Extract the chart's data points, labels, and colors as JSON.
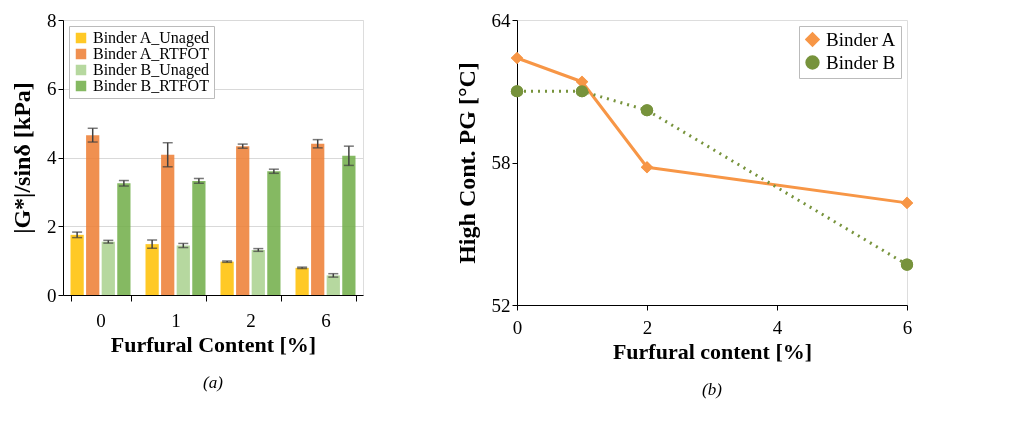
{
  "chart_data": [
    {
      "type": "bar",
      "categories": [
        "0",
        "1",
        "2",
        "6"
      ],
      "xlabel": "Furfural Content [%]",
      "ylabel": "|G*|/sinδ [kPa]",
      "ylim": [
        0,
        8
      ],
      "yticks": [
        0,
        2,
        4,
        6,
        8
      ],
      "grid": "y",
      "legend": "top left",
      "annotations": [
        "(a)"
      ],
      "series": [
        {
          "name": "Binder A_Unaged",
          "color": "#ffc000",
          "values": [
            1.75,
            1.48,
            0.97,
            0.79
          ],
          "errors": [
            0.08,
            0.12,
            0.02,
            0.02
          ]
        },
        {
          "name": "Binder A_RTFOT",
          "color": "#ed7d31",
          "values": [
            4.65,
            4.08,
            4.33,
            4.4
          ],
          "errors": [
            0.2,
            0.35,
            0.06,
            0.12
          ]
        },
        {
          "name": "Binder B_Unaged",
          "color": "#a9d18e",
          "values": [
            1.55,
            1.44,
            1.31,
            0.57
          ],
          "errors": [
            0.04,
            0.06,
            0.04,
            0.05
          ]
        },
        {
          "name": "Binder B_RTFOT",
          "color": "#70ad47",
          "values": [
            3.25,
            3.32,
            3.6,
            4.05
          ],
          "errors": [
            0.08,
            0.07,
            0.06,
            0.28
          ]
        }
      ]
    },
    {
      "type": "line",
      "x": [
        0,
        1,
        2,
        6
      ],
      "xlabel": "Furfural content [%]",
      "ylabel": "High Cont. PG [°C]",
      "xlim": [
        0,
        6
      ],
      "xticks": [
        0,
        2,
        4,
        6
      ],
      "ylim": [
        52,
        64
      ],
      "yticks": [
        52,
        58,
        64
      ],
      "legend": "top right",
      "annotations": [
        "(b)"
      ],
      "series": [
        {
          "name": "Binder A",
          "color": "#f79646",
          "values": [
            62.4,
            61.4,
            57.8,
            56.3
          ],
          "marker": "diamond",
          "line_style": "solid"
        },
        {
          "name": "Binder B",
          "color": "#77933c",
          "values": [
            61.0,
            61.0,
            60.2,
            53.7
          ],
          "marker": "circle",
          "line_style": "dotted"
        }
      ]
    }
  ]
}
